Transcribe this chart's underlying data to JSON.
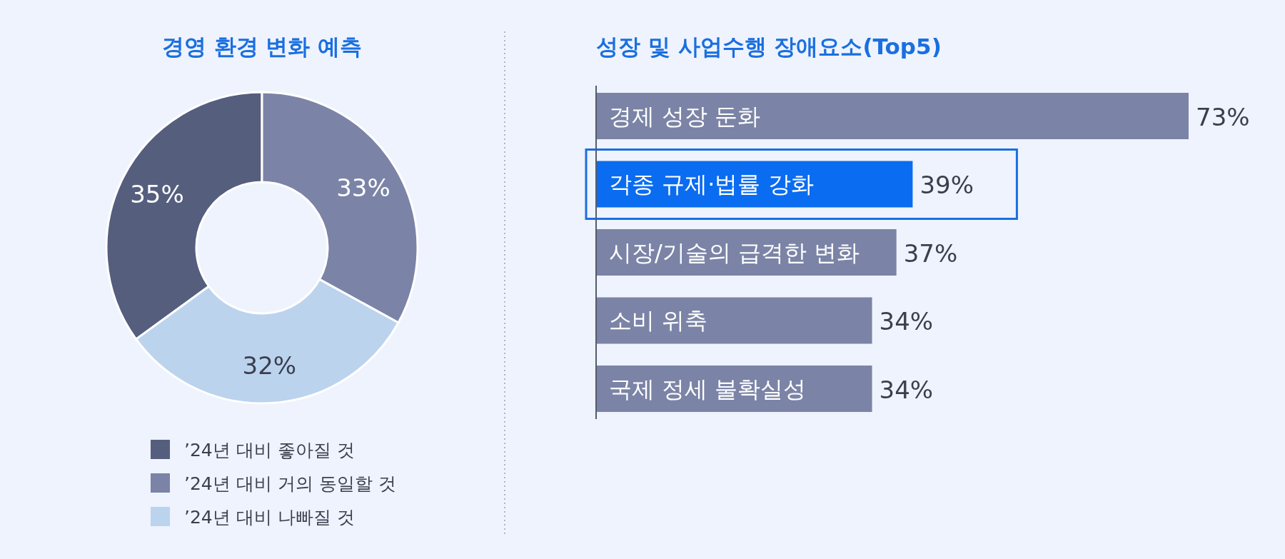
{
  "chart_data": [
    {
      "type": "donut",
      "title": "경영 환경 변화 예측",
      "categories": [
        "’24년 대비  좋아질 것",
        "’24년 대비 거의 동일할 것",
        "’24년 대비 나빠질 것"
      ],
      "values": [
        35,
        33,
        32
      ],
      "colors": [
        "#565e7e",
        "#7b84a6",
        "#bcd3ee"
      ],
      "value_labels": [
        "35%",
        "33%",
        "32%"
      ],
      "legend": "bottom"
    },
    {
      "type": "bar",
      "orientation": "horizontal",
      "title": "성장 및 사업수행 장애요소(Top5)",
      "categories": [
        "경제 성장 둔화",
        "각종 규제·법률 강화",
        "시장/기술의 급격한 변화",
        "소비 위축",
        "국제 정세 불확실성"
      ],
      "values": [
        73,
        39,
        37,
        34,
        34
      ],
      "colors": [
        "#7b84a6",
        "#0a6cf0",
        "#7b84a6",
        "#7b84a6",
        "#7b84a6"
      ],
      "value_labels": [
        "73%",
        "39%",
        "37%",
        "34%",
        "34%"
      ]
    }
  ]
}
